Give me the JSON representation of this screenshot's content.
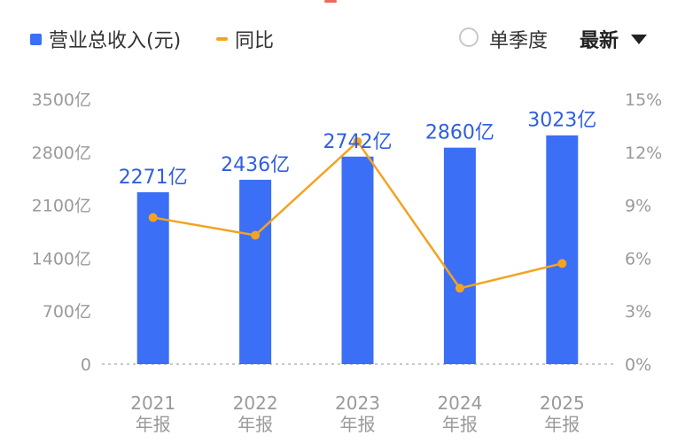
{
  "legend": {
    "bar_label": "营业总收入(元)",
    "line_label": "同比"
  },
  "controls": {
    "period_option": "单季度",
    "sort_label": "最新"
  },
  "colors": {
    "bar": "#3b6ff5",
    "line": "#f4a321",
    "label": "#2f5fe0"
  },
  "chart_data": {
    "type": "bar",
    "categories": [
      [
        "2021",
        "年报"
      ],
      [
        "2022",
        "年报"
      ],
      [
        "2023",
        "年报"
      ],
      [
        "2024",
        "年报"
      ],
      [
        "2025",
        "年报"
      ]
    ],
    "series": [
      {
        "name": "营业总收入(元)",
        "type": "bar",
        "axis": "left",
        "values": [
          2271,
          2436,
          2742,
          2860,
          3023
        ],
        "labels": [
          "2271亿",
          "2436亿",
          "2742亿",
          "2860亿",
          "3023亿"
        ]
      },
      {
        "name": "同比",
        "type": "line",
        "axis": "right",
        "values": [
          8.3,
          7.3,
          12.6,
          4.3,
          5.7
        ]
      }
    ],
    "left_axis": {
      "ylim": [
        0,
        3500
      ],
      "ticks": [
        "0",
        "700亿",
        "1400亿",
        "2100亿",
        "2800亿",
        "3500亿"
      ]
    },
    "right_axis": {
      "ylim": [
        0,
        15
      ],
      "ticks": [
        "0%",
        "3%",
        "6%",
        "9%",
        "12%",
        "15%"
      ]
    },
    "grid": false
  }
}
